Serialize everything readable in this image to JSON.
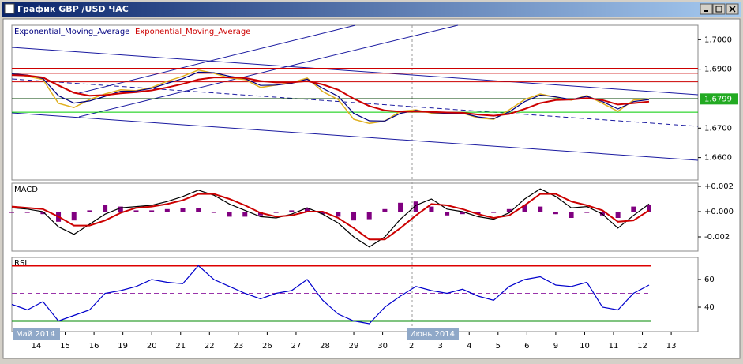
{
  "window": {
    "title": "График GBP /USD ЧАС"
  },
  "x_axis": {
    "labels": [
      "14",
      "15",
      "16",
      "19",
      "20",
      "21",
      "22",
      "23",
      "26",
      "27",
      "28",
      "29",
      "30",
      "2",
      "3",
      "4",
      "5",
      "6",
      "9",
      "10",
      "11",
      "12",
      "13"
    ],
    "months": [
      "Май 2014",
      "Июнь 2014"
    ]
  },
  "chart_data": [
    {
      "type": "line",
      "series": [
        {
          "color": "#e0b020",
          "values": [
            1.6886,
            1.6876,
            1.6865,
            1.6784,
            1.677,
            1.6797,
            1.6816,
            1.683,
            1.6827,
            1.6838,
            1.6859,
            1.6876,
            1.6897,
            1.6886,
            1.687,
            1.6865,
            1.6838,
            1.6846,
            1.6854,
            1.687,
            1.6824,
            1.6797,
            1.673,
            1.6716,
            1.6724,
            1.6757,
            1.6762,
            1.6751,
            1.6749,
            1.6751,
            1.6735,
            1.673,
            1.6762,
            1.6797,
            1.6816,
            1.6805,
            1.6795,
            1.6811,
            1.6784,
            1.6757,
            1.6795,
            1.6799
          ]
        },
        {
          "name": "Exponential_Moving_Average",
          "color": "#000080",
          "values": [
            1.6884,
            1.688,
            1.6868,
            1.681,
            1.6785,
            1.6792,
            1.6808,
            1.6825,
            1.6826,
            1.6835,
            1.6852,
            1.6868,
            1.689,
            1.6888,
            1.6876,
            1.6868,
            1.6845,
            1.6846,
            1.6852,
            1.6866,
            1.6835,
            1.6808,
            1.675,
            1.6725,
            1.6724,
            1.675,
            1.676,
            1.6753,
            1.675,
            1.6751,
            1.6738,
            1.6732,
            1.6755,
            1.679,
            1.6812,
            1.6806,
            1.6797,
            1.6808,
            1.679,
            1.6765,
            1.679,
            1.6797
          ]
        },
        {
          "name": "Exponential_Moving_Average",
          "color": "#cc0000",
          "values": [
            1.688,
            1.6878,
            1.6872,
            1.6845,
            1.682,
            1.681,
            1.6812,
            1.6818,
            1.6822,
            1.6828,
            1.6838,
            1.685,
            1.6865,
            1.6872,
            1.6872,
            1.687,
            1.686,
            1.6855,
            1.6855,
            1.686,
            1.6848,
            1.683,
            1.68,
            1.6775,
            1.676,
            1.6756,
            1.6756,
            1.6755,
            1.6753,
            1.6752,
            1.6746,
            1.6742,
            1.6748,
            1.6765,
            1.6785,
            1.6795,
            1.6797,
            1.6802,
            1.6795,
            1.678,
            1.6785,
            1.679
          ]
        }
      ],
      "ylim": [
        1.6524,
        1.7049
      ],
      "yticks": [
        {
          "value": 1.66,
          "label": "1.6600"
        },
        {
          "value": 1.67,
          "label": "1.6700"
        },
        {
          "value": 1.69,
          "label": "1.6900"
        },
        {
          "value": 1.7,
          "label": "1.7000"
        }
      ],
      "hlines": [
        {
          "value": 1.6903,
          "color": "#cc0000"
        },
        {
          "value": 1.6886,
          "color": "#cc0000"
        },
        {
          "value": 1.6857,
          "color": "#cc0000"
        },
        {
          "value": 1.68,
          "color": "#004000"
        },
        {
          "value": 1.6754,
          "color": "#00cc00"
        }
      ],
      "last_price": {
        "value": 1.6799,
        "label": "1.6799"
      }
    },
    {
      "type": "line",
      "title": "MACD",
      "series": [
        {
          "kind": "bar",
          "color": "#800080",
          "values": [
            -0.0001,
            -0.0001,
            -0.0002,
            -0.0008,
            -0.0007,
            0.0001,
            0.0005,
            0.0004,
            0.0001,
            0.0001,
            0.0002,
            0.0003,
            0.0003,
            -0.0001,
            -0.0004,
            -0.0004,
            -0.0003,
            -0.0001,
            0.0001,
            0.0003,
            -0.0002,
            -0.0004,
            -0.0007,
            -0.0006,
            0.0002,
            0.0007,
            0.0008,
            0.0004,
            -0.0003,
            -0.0002,
            -0.0002,
            -0.0001,
            0.0002,
            0.0005,
            0.0004,
            -0.0002,
            -0.0005,
            -0.0001,
            -0.0003,
            -0.0005,
            0.0004,
            0.0005
          ]
        },
        {
          "color": "#000000",
          "values": [
            0.0003,
            0.0002,
            0,
            -0.0012,
            -0.0018,
            -0.001,
            -0.0002,
            0.0003,
            0.0004,
            0.0005,
            0.0008,
            0.0012,
            0.0017,
            0.0013,
            0.0006,
            0.0001,
            -0.0004,
            -0.0005,
            -0.0002,
            0.0003,
            -0.0002,
            -0.0009,
            -0.002,
            -0.0028,
            -0.002,
            -0.0006,
            0.0005,
            0.001,
            0.0002,
            0,
            -0.0004,
            -0.0006,
            -0.0001,
            0.001,
            0.0018,
            0.0012,
            0.0003,
            0.0004,
            -0.0002,
            -0.0013,
            -0.0003,
            0.0006
          ]
        },
        {
          "color": "#cc0000",
          "values": [
            0.0004,
            0.0003,
            0.0002,
            -0.0004,
            -0.0011,
            -0.0011,
            -0.0007,
            -0.0001,
            0.0003,
            0.0004,
            0.0006,
            0.0009,
            0.0014,
            0.0014,
            0.001,
            0.0005,
            -0.0001,
            -0.0004,
            -0.0003,
            0,
            0,
            -0.0005,
            -0.0013,
            -0.0022,
            -0.0022,
            -0.0013,
            -0.0003,
            0.0006,
            0.0005,
            0.0002,
            -0.0002,
            -0.0005,
            -0.0003,
            0.0005,
            0.0014,
            0.0014,
            0.0008,
            0.0005,
            0.0001,
            -0.0008,
            -0.0007,
            0.0001
          ]
        }
      ],
      "ylim": [
        -0.003125,
        0.00225
      ],
      "yticks": [
        {
          "value": -0.002,
          "label": "-0.002"
        },
        {
          "value": 0,
          "label": "+0.000"
        },
        {
          "value": 0.002,
          "label": "+0.002"
        }
      ]
    },
    {
      "type": "line",
      "title": "RSI",
      "series": [
        {
          "color": "#0000cc",
          "values": [
            42,
            38,
            44,
            30,
            34,
            38,
            50,
            52,
            55,
            60,
            58,
            57,
            70,
            60,
            55,
            50,
            46,
            50,
            52,
            60,
            45,
            35,
            30,
            28,
            40,
            48,
            55,
            52,
            50,
            53,
            48,
            45,
            55,
            60,
            62,
            56,
            55,
            58,
            40,
            38,
            50,
            56
          ]
        }
      ],
      "ylim": [
        22.3,
        76
      ],
      "yticks": [
        40,
        60
      ],
      "hlines": [
        {
          "value": 70,
          "color": "#dd0000"
        },
        {
          "value": 50,
          "color": "#9933aa",
          "dashed": true
        },
        {
          "value": 30,
          "color": "#008800"
        }
      ]
    }
  ]
}
